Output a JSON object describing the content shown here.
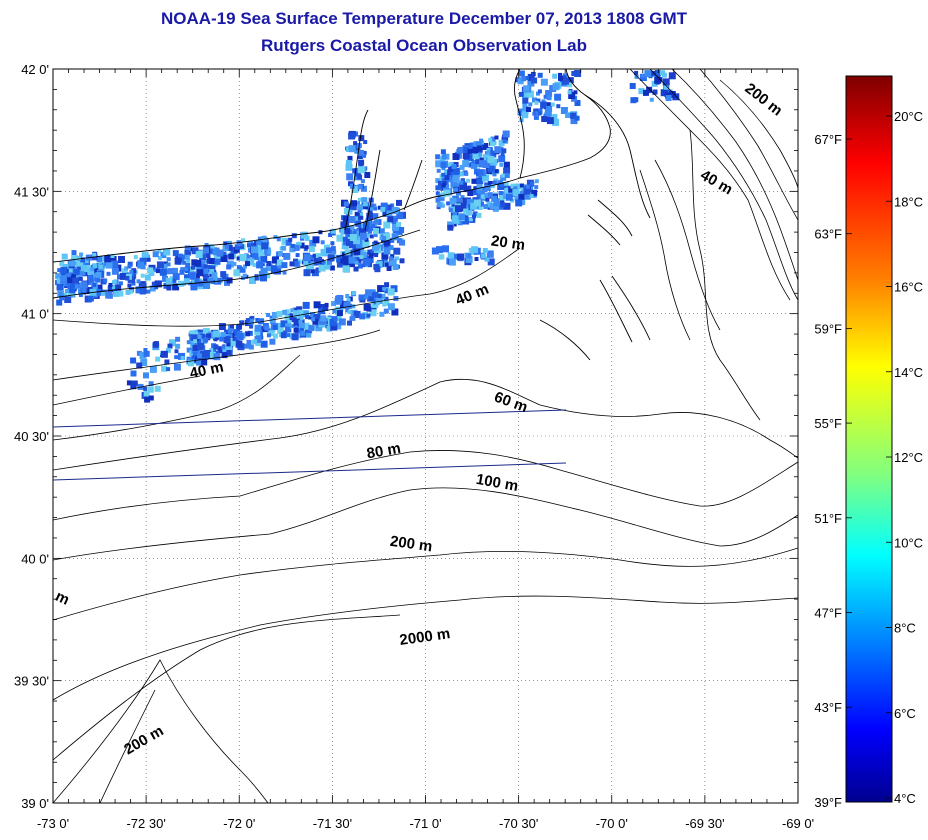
{
  "title": "NOAA-19 Sea Surface Temperature December 07, 2013 1808 GMT",
  "subtitle": "Rutgers Coastal Ocean Observation Lab",
  "x_ticks": [
    "-73 0'",
    "-72 30'",
    "-72 0'",
    "-71 30'",
    "-71 0'",
    "-70 30'",
    "-70 0'",
    "-69 30'",
    "-69 0'"
  ],
  "y_ticks": [
    "42 0'",
    "41 30'",
    "41 0'",
    "40 30'",
    "40 0'",
    "39 30'",
    "39 0'"
  ],
  "contour_labels": [
    {
      "text": "200 m",
      "lon": -69.2,
      "lat": 41.86,
      "angle": 38
    },
    {
      "text": "40 m",
      "lon": -69.45,
      "lat": 41.52,
      "angle": 30
    },
    {
      "text": "20 m",
      "lon": -70.56,
      "lat": 41.27,
      "angle": 8
    },
    {
      "text": "40 m",
      "lon": -70.74,
      "lat": 41.06,
      "angle": -22
    },
    {
      "text": "40 m",
      "lon": -72.17,
      "lat": 40.75,
      "angle": -12
    },
    {
      "text": "60 m",
      "lon": -70.55,
      "lat": 40.62,
      "angle": 20
    },
    {
      "text": "80 m",
      "lon": -71.22,
      "lat": 40.42,
      "angle": -10
    },
    {
      "text": "100 m",
      "lon": -70.62,
      "lat": 40.29,
      "angle": 10
    },
    {
      "text": "200 m",
      "lon": -71.08,
      "lat": 40.04,
      "angle": 8
    },
    {
      "text": "2000 m",
      "lon": -71.0,
      "lat": 39.66,
      "angle": -8
    },
    {
      "text": "m",
      "lon": -72.96,
      "lat": 39.82,
      "angle": 25
    },
    {
      "text": "200 m",
      "lon": -72.5,
      "lat": 39.24,
      "angle": -30
    }
  ],
  "colorbar": {
    "celsius_labels": [
      "20°C",
      "18°C",
      "16°C",
      "14°C",
      "12°C",
      "10°C",
      "8°C",
      "6°C",
      "4°C"
    ],
    "fahrenheit_labels": [
      "67°F",
      "63°F",
      "59°F",
      "55°F",
      "51°F",
      "47°F",
      "43°F",
      "39°F"
    ],
    "colors": [
      "#7f0000",
      "#ff0000",
      "#ff8000",
      "#ffff00",
      "#80ff80",
      "#00ffff",
      "#0080ff",
      "#0000ff",
      "#00008f"
    ]
  }
}
